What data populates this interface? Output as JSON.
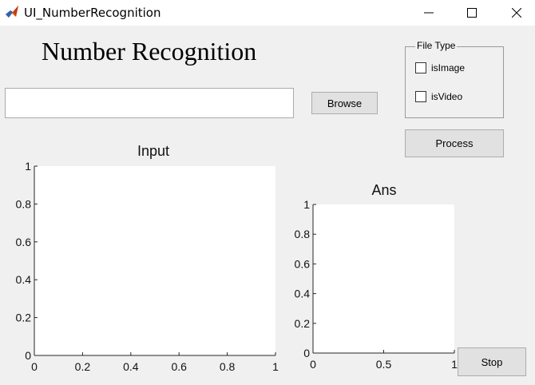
{
  "window": {
    "title": "UI_NumberRecognition",
    "controls": [
      "minimize-icon",
      "maximize-icon",
      "close-icon"
    ]
  },
  "heading": "Number Recognition",
  "path_input": {
    "value": "",
    "placeholder": ""
  },
  "buttons": {
    "browse": "Browse",
    "process": "Process",
    "stop": "Stop"
  },
  "file_type": {
    "legend": "File Type",
    "options": [
      {
        "label": "isImage",
        "checked": false
      },
      {
        "label": "isVideo",
        "checked": false
      }
    ]
  },
  "axes": {
    "input": {
      "title": "Input",
      "x_ticks": [
        "0",
        "0.2",
        "0.4",
        "0.6",
        "0.8",
        "1"
      ],
      "y_ticks": [
        "0",
        "0.2",
        "0.4",
        "0.6",
        "0.8",
        "1"
      ]
    },
    "ans": {
      "title": "Ans",
      "x_ticks": [
        "0",
        "0.5",
        "1"
      ],
      "y_ticks": [
        "0",
        "0.2",
        "0.4",
        "0.6",
        "0.8",
        "1"
      ]
    }
  },
  "colors": {
    "background": "#f0f0f0",
    "plot_area": "#ffffff",
    "button": "#e1e1e1"
  }
}
